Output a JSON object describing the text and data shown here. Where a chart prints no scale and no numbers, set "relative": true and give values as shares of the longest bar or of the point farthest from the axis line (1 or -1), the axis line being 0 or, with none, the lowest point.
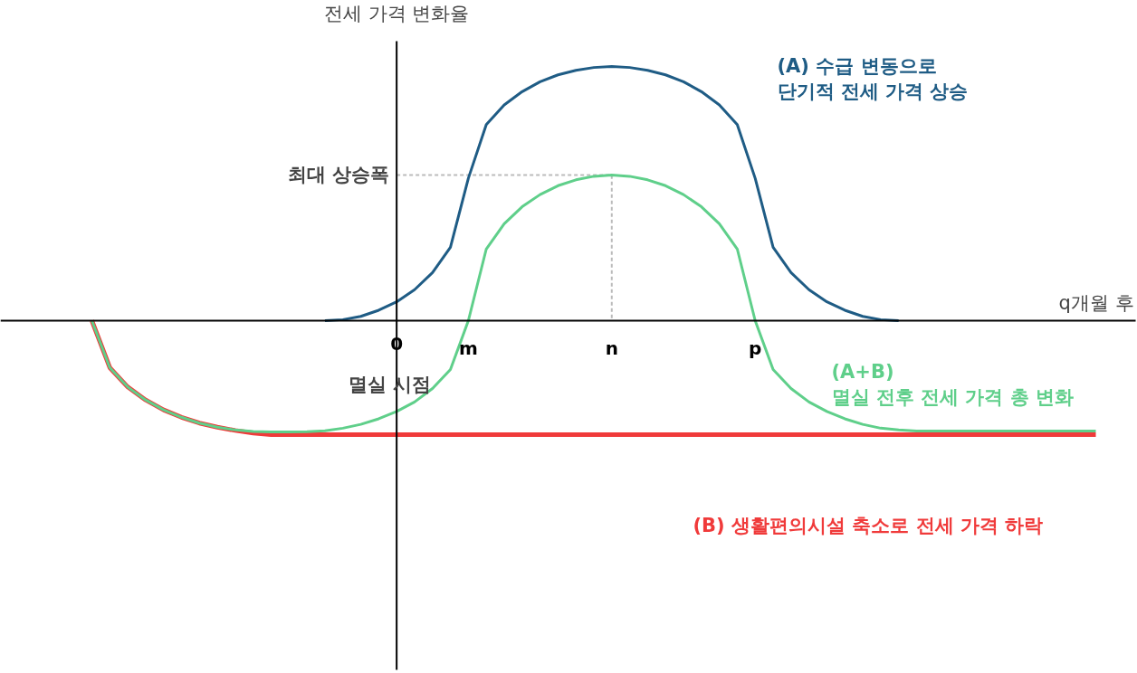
{
  "chart_data": {
    "type": "line",
    "relative": true,
    "xlabel": "q개월 후",
    "ylabel": "전세 가격 변화율",
    "line_style": "solid",
    "categories": [
      null,
      null,
      null,
      null,
      null,
      null,
      null,
      null,
      null,
      null,
      null,
      null,
      null,
      null,
      null,
      null,
      null,
      "0",
      null,
      null,
      null,
      "m",
      null,
      null,
      null,
      null,
      null,
      null,
      null,
      "n",
      null,
      null,
      null,
      null,
      null,
      null,
      null,
      "p",
      null,
      null,
      null,
      null,
      null,
      null,
      null,
      null,
      null,
      null,
      null,
      null,
      null,
      null,
      null,
      null,
      null,
      null,
      null
    ],
    "annotations": [
      "최대 상승폭",
      "멸실 시점"
    ],
    "series": [
      {
        "name": "(B) 생활편의시설 축소로 전세 가격 하락",
        "color": "#f03a3a",
        "values": [
          0,
          -0.185,
          -0.261,
          -0.312,
          -0.351,
          -0.38,
          -0.403,
          -0.419,
          -0.432,
          -0.442,
          -0.448,
          -0.448,
          -0.448,
          -0.448,
          -0.448,
          -0.448,
          -0.448,
          -0.448,
          -0.448,
          -0.448,
          -0.448,
          -0.448,
          -0.448,
          -0.448,
          -0.448,
          -0.448,
          -0.448,
          -0.448,
          -0.448,
          -0.448,
          -0.448,
          -0.448,
          -0.448,
          -0.448,
          -0.448,
          -0.448,
          -0.448,
          -0.448,
          -0.448,
          -0.448,
          -0.448,
          -0.448,
          -0.448,
          -0.448,
          -0.448,
          -0.448,
          -0.448,
          -0.448,
          -0.448,
          -0.448,
          -0.448,
          -0.448,
          -0.448,
          -0.448,
          -0.448,
          -0.448,
          -0.448
        ]
      },
      {
        "name": "(A+B)\n멸실 전후 전세 가격 총 변화",
        "color": "#5fcf8a",
        "values": [
          0,
          -0.185,
          -0.261,
          -0.312,
          -0.351,
          -0.38,
          -0.403,
          -0.419,
          -0.43,
          -0.436,
          -0.438,
          -0.438,
          -0.437,
          -0.433,
          -0.423,
          -0.408,
          -0.386,
          -0.357,
          -0.32,
          -0.267,
          -0.192,
          0,
          0.282,
          0.381,
          0.448,
          0.496,
          0.531,
          0.554,
          0.568,
          0.573,
          0.568,
          0.554,
          0.531,
          0.496,
          0.448,
          0.381,
          0.282,
          0,
          -0.192,
          -0.267,
          -0.32,
          -0.357,
          -0.386,
          -0.408,
          -0.423,
          -0.43,
          -0.434,
          -0.434,
          -0.434,
          -0.434,
          -0.434,
          -0.434,
          -0.434,
          -0.434,
          -0.434,
          -0.434,
          -0.434
        ]
      },
      {
        "name": "(A) 수급 변동으로\n단기적 전세 가격 상승",
        "color": "#1f5c85",
        "values": [
          null,
          null,
          null,
          null,
          null,
          null,
          null,
          null,
          null,
          null,
          null,
          null,
          null,
          0,
          0.004,
          0.017,
          0.041,
          0.074,
          0.122,
          0.189,
          0.289,
          0.56,
          0.771,
          0.849,
          0.901,
          0.94,
          0.967,
          0.985,
          0.996,
          1,
          0.996,
          0.985,
          0.967,
          0.94,
          0.901,
          0.849,
          0.771,
          0.56,
          0.289,
          0.189,
          0.122,
          0.074,
          0.041,
          0.017,
          0.004,
          0,
          null,
          null,
          null,
          null,
          null,
          null,
          null,
          null,
          null,
          null,
          null
        ]
      }
    ]
  }
}
